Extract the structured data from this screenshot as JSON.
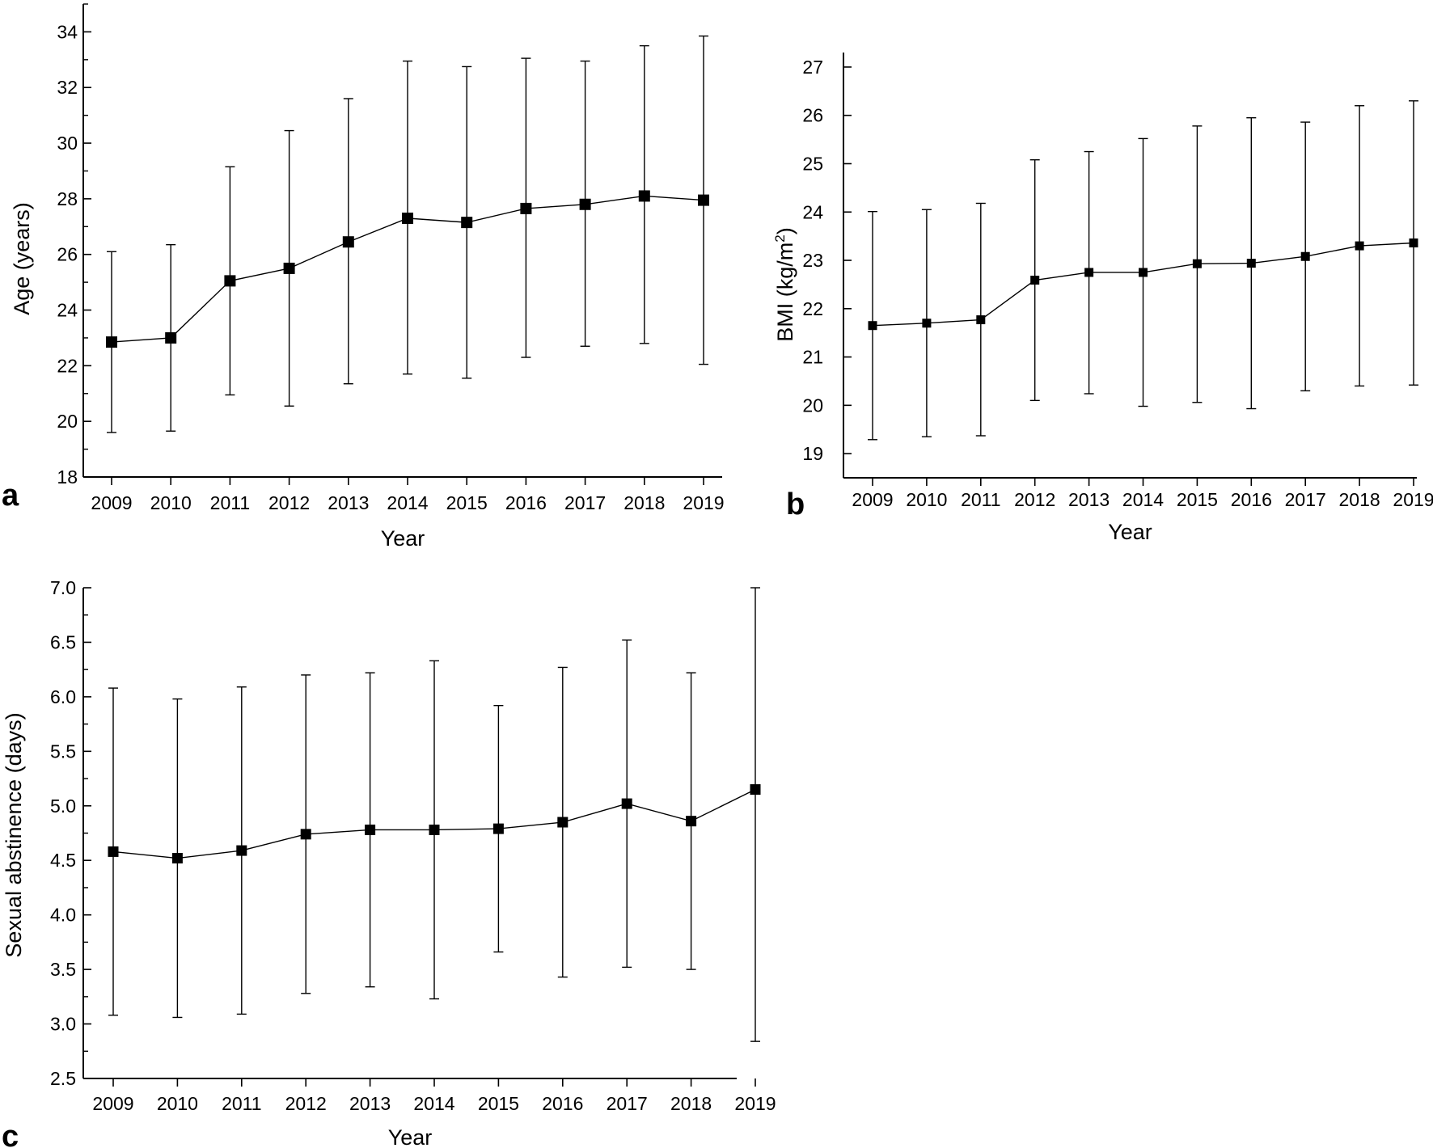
{
  "colors": {
    "line": "#000000",
    "marker": "#000000",
    "background": "#ffffff"
  },
  "chart_data": [
    {
      "panel_label": "a",
      "type": "line",
      "error_bars": true,
      "marker": "square",
      "grid": false,
      "xlabel": "Year",
      "ylabel": "Age (years)",
      "ylim": [
        18,
        35
      ],
      "yticks": [
        "18",
        "20",
        "22",
        "24",
        "26",
        "28",
        "30",
        "32",
        "34"
      ],
      "x": [
        "2009",
        "2010",
        "2011",
        "2012",
        "2013",
        "2014",
        "2015",
        "2016",
        "2017",
        "2018",
        "2019"
      ],
      "series": [
        {
          "values": [
            22.85,
            23.0,
            25.05,
            25.5,
            26.45,
            27.3,
            27.15,
            27.65,
            27.8,
            28.1,
            27.95
          ],
          "upper": [
            26.1,
            26.35,
            29.15,
            30.45,
            31.6,
            32.95,
            32.75,
            33.05,
            32.95,
            33.5,
            33.85
          ],
          "lower": [
            19.6,
            19.65,
            20.95,
            20.55,
            21.35,
            21.7,
            21.55,
            22.3,
            22.7,
            22.8,
            22.05
          ]
        }
      ]
    },
    {
      "panel_label": "b",
      "type": "line",
      "error_bars": true,
      "marker": "square",
      "grid": false,
      "xlabel": "Year",
      "ylabel": "BMI (kg/m",
      "ylabel_superscript": "2",
      "ylabel_suffix": ")",
      "ylim": [
        18.5,
        27.3
      ],
      "yticks": [
        "19",
        "20",
        "21",
        "22",
        "23",
        "24",
        "25",
        "26",
        "27"
      ],
      "x": [
        "2009",
        "2010",
        "2011",
        "2012",
        "2013",
        "2014",
        "2015",
        "2016",
        "2017",
        "2018",
        "2019"
      ],
      "series": [
        {
          "values": [
            21.65,
            21.7,
            21.77,
            22.59,
            22.75,
            22.75,
            22.93,
            22.94,
            23.08,
            23.3,
            23.36
          ],
          "upper": [
            24.01,
            24.05,
            24.18,
            25.08,
            25.25,
            25.52,
            25.78,
            25.95,
            25.86,
            26.2,
            26.3
          ],
          "lower": [
            19.29,
            19.35,
            19.37,
            20.1,
            20.24,
            19.98,
            20.06,
            19.93,
            20.3,
            20.4,
            20.42
          ]
        }
      ]
    },
    {
      "panel_label": "c",
      "type": "line",
      "error_bars": true,
      "marker": "square",
      "grid": false,
      "xlabel": "Year",
      "ylabel": "Sexual abstinence (days)",
      "ylim": [
        2.5,
        7.0
      ],
      "yticks": [
        "2.5",
        "3.0",
        "3.5",
        "4.0",
        "4.5",
        "5.0",
        "5.5",
        "6.0",
        "6.5",
        "7.0"
      ],
      "x": [
        "2009",
        "2010",
        "2011",
        "2012",
        "2013",
        "2014",
        "2015",
        "2016",
        "2017",
        "2018",
        "2019"
      ],
      "series": [
        {
          "values": [
            4.58,
            4.52,
            4.59,
            4.74,
            4.78,
            4.78,
            4.79,
            4.85,
            5.02,
            4.86,
            5.15
          ],
          "upper": [
            6.08,
            5.98,
            6.09,
            6.2,
            6.22,
            6.33,
            5.92,
            6.27,
            6.52,
            6.22,
            7.0
          ],
          "lower": [
            3.08,
            3.06,
            3.09,
            3.28,
            3.34,
            3.23,
            3.66,
            3.43,
            3.52,
            3.5,
            2.84
          ]
        }
      ]
    }
  ]
}
